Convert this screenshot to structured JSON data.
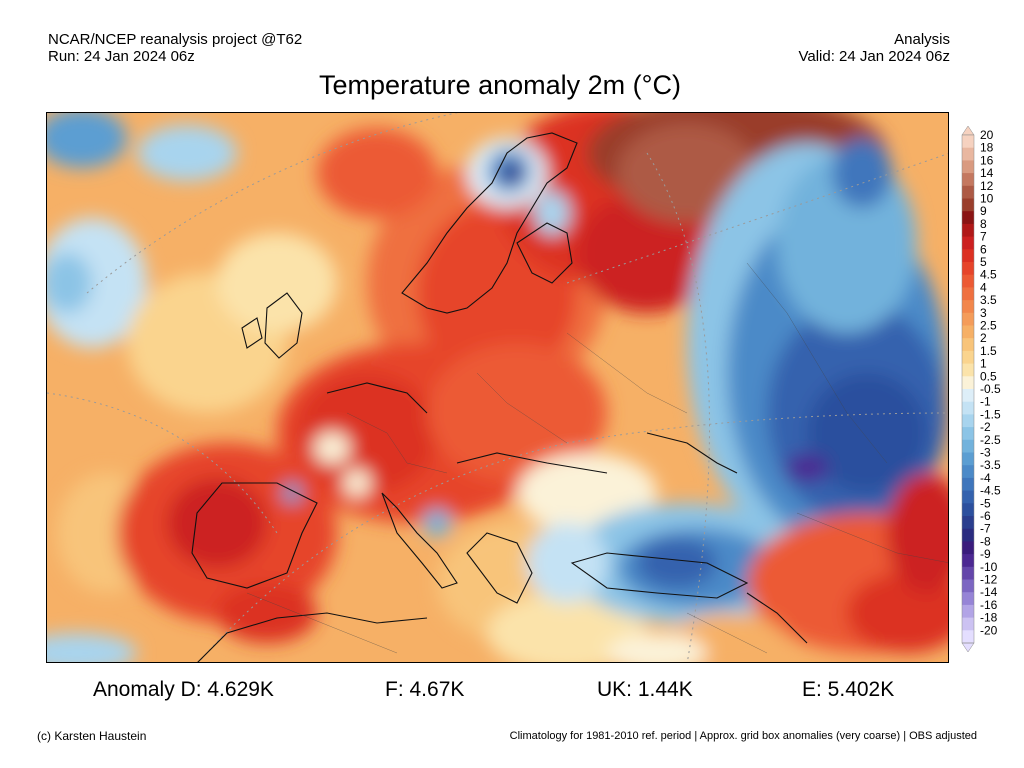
{
  "header": {
    "project": "NCAR/NCEP reanalysis project @T62",
    "run": "Run: 24 Jan 2024 06z",
    "analysis": "Analysis",
    "valid": "Valid: 24 Jan 2024 06z"
  },
  "title": "Temperature anomaly 2m (°C)",
  "colorbar": {
    "labels": [
      "20",
      "18",
      "16",
      "14",
      "12",
      "10",
      "9",
      "8",
      "7",
      "6",
      "5",
      "4.5",
      "4",
      "3.5",
      "3",
      "2.5",
      "2",
      "1.5",
      "1",
      "0.5",
      "-0.5",
      "-1",
      "-1.5",
      "-2",
      "-2.5",
      "-3",
      "-3.5",
      "-4",
      "-4.5",
      "-5",
      "-6",
      "-7",
      "-8",
      "-9",
      "-10",
      "-12",
      "-14",
      "-16",
      "-18",
      "-20"
    ],
    "colors": [
      "#f6d2c0",
      "#e9b7a0",
      "#d99a80",
      "#c47860",
      "#ad5a45",
      "#9a3e2c",
      "#8a1414",
      "#b01818",
      "#cc2020",
      "#dc3022",
      "#e6442a",
      "#ec5a34",
      "#ef7040",
      "#f2874c",
      "#f49c5a",
      "#f6b066",
      "#f8c47a",
      "#fad48e",
      "#fbe3aa",
      "#fbf2d8",
      "#ddeef8",
      "#c4e2f4",
      "#a8d4ee",
      "#8cc4e6",
      "#72b2dc",
      "#5c9ed2",
      "#4c8ac8",
      "#3f76bc",
      "#3462ae",
      "#2c509e",
      "#2a3e8e",
      "#2a2c80",
      "#3a1c7c",
      "#4c2892",
      "#6446aa",
      "#7c66c2",
      "#9684d6",
      "#b2a4e6",
      "#ccc2f2",
      "#e4deff"
    ]
  },
  "stats": {
    "d": "Anomaly D: 4.629K",
    "f": "F: 4.67K",
    "uk": "UK: 1.44K",
    "e": "E: 5.402K"
  },
  "credit": "(c) Karsten Haustein",
  "footnote": "Climatology for 1981-2010 ref. period | Approx. grid box anomalies (very coarse) | OBS adjusted"
}
